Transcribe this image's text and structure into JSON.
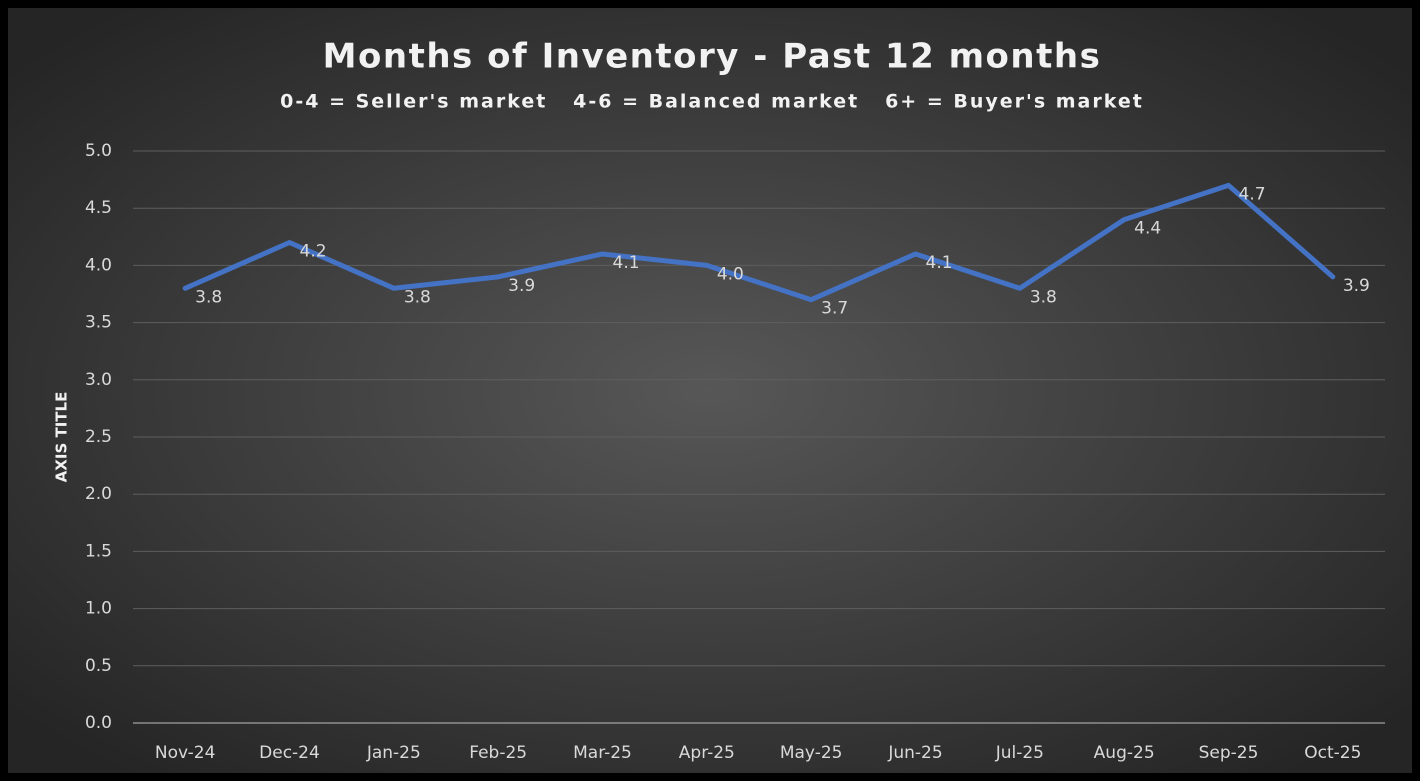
{
  "chart_data": {
    "type": "line",
    "title": "Months of Inventory - Past 12 months",
    "subtitle": "0-4 = Seller's market   4-6 = Balanced market   6+ = Buyer's market",
    "y_axis_label": "AXIS TITLE",
    "categories": [
      "Nov-24",
      "Dec-24",
      "Jan-25",
      "Feb-25",
      "Mar-25",
      "Apr-25",
      "May-25",
      "Jun-25",
      "Jul-25",
      "Aug-25",
      "Sep-25",
      "Oct-25"
    ],
    "values": [
      3.8,
      4.2,
      3.8,
      3.9,
      4.1,
      4.0,
      3.7,
      4.1,
      3.8,
      4.4,
      4.7,
      3.9
    ],
    "value_labels": [
      "3.8",
      "4.2",
      "3.8",
      "3.9",
      "4.1",
      "4.0",
      "3.7",
      "4.1",
      "3.8",
      "4.4",
      "4.7",
      "3.9"
    ],
    "color": "#4472c4",
    "ylim": [
      0,
      5
    ],
    "yticks": [
      {
        "value": 0,
        "label": "0.0"
      },
      0.5,
      {
        "value": 1,
        "label": "1.0"
      },
      1.5,
      {
        "value": 2,
        "label": "2.0"
      },
      2.5,
      {
        "value": 3,
        "label": "3.0"
      },
      3.5,
      {
        "value": 4,
        "label": "4.0"
      },
      4.5,
      {
        "value": 5,
        "label": "5.0"
      }
    ],
    "grid": true
  }
}
